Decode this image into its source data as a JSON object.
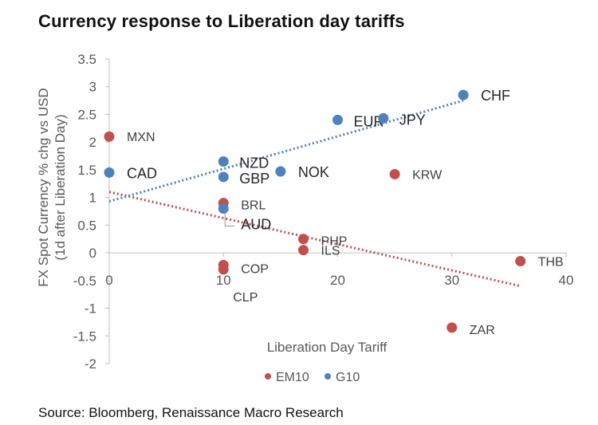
{
  "title": "Currency response to Liberation day tariffs",
  "source": "Source: Bloomberg, Renaissance Macro Research",
  "chart_data": {
    "type": "scatter",
    "title": "Currency response to Liberation day tariffs",
    "xlabel": "Liberation Day Tariff",
    "ylabel_lines": [
      "FX Spot Currency % chg vs USD",
      "(1d after Liberation Day)"
    ],
    "xlim": [
      0,
      40
    ],
    "ylim": [
      -2,
      3.5
    ],
    "x_ticks": [
      0,
      10,
      20,
      30,
      40
    ],
    "y_ticks": [
      -2,
      -1.5,
      -1,
      -0.5,
      0,
      0.5,
      1,
      1.5,
      2,
      2.5,
      3,
      3.5
    ],
    "x_tick_labels": [
      "0",
      "10",
      "20",
      "30",
      "40"
    ],
    "y_tick_labels": [
      "-2",
      "-1.5",
      "-1",
      "-0.5",
      "0",
      "0.5",
      "1",
      "1.5",
      "2",
      "2.5",
      "3",
      "3.5"
    ],
    "grid": false,
    "legend_position": "bottom",
    "series": [
      {
        "name": "EM10",
        "color": "#c0504d",
        "points": [
          {
            "label": "MXN",
            "x": 0,
            "y": 2.1
          },
          {
            "label": "BRL",
            "x": 10,
            "y": 0.9
          },
          {
            "label": "COP",
            "x": 10,
            "y": -0.22
          },
          {
            "label": "CLP",
            "x": 10,
            "y": -0.3
          },
          {
            "label": "PHP",
            "x": 17,
            "y": 0.25
          },
          {
            "label": "ILS",
            "x": 17,
            "y": 0.05
          },
          {
            "label": "KRW",
            "x": 25,
            "y": 1.42
          },
          {
            "label": "ZAR",
            "x": 30,
            "y": -1.35
          },
          {
            "label": "THB",
            "x": 36,
            "y": -0.15
          }
        ],
        "trendline": {
          "x": [
            0,
            36
          ],
          "y": [
            1.1,
            -0.6
          ]
        }
      },
      {
        "name": "G10",
        "color": "#4f81bd",
        "points": [
          {
            "label": "CAD",
            "x": 0,
            "y": 1.45
          },
          {
            "label": "NZD",
            "x": 10,
            "y": 1.65
          },
          {
            "label": "GBP",
            "x": 10,
            "y": 1.37
          },
          {
            "label": "AUD",
            "x": 10,
            "y": 0.8
          },
          {
            "label": "NOK",
            "x": 15,
            "y": 1.47
          },
          {
            "label": "EUR",
            "x": 20,
            "y": 2.4
          },
          {
            "label": "JPY",
            "x": 24,
            "y": 2.43
          },
          {
            "label": "CHF",
            "x": 31,
            "y": 2.85
          }
        ],
        "trendline": {
          "x": [
            0,
            31
          ],
          "y": [
            0.93,
            2.75
          ]
        }
      }
    ]
  }
}
